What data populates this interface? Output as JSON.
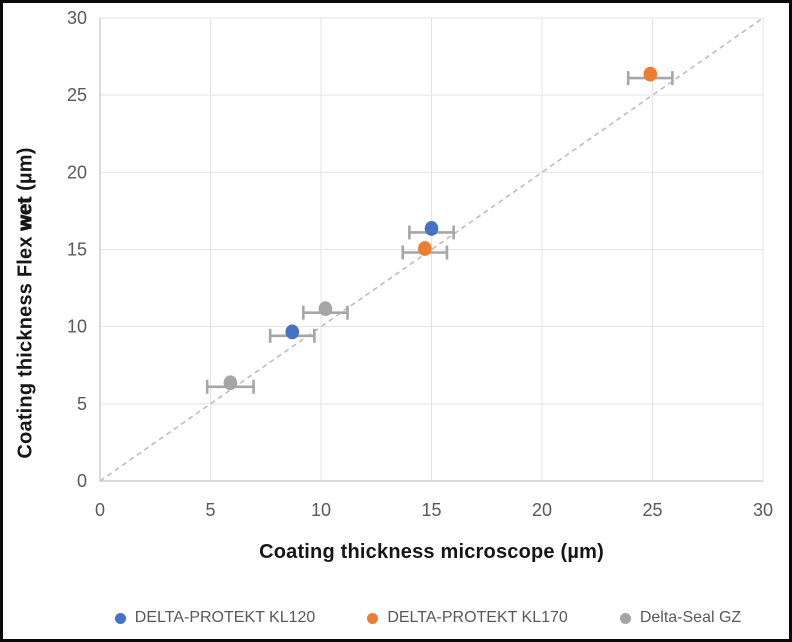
{
  "chart_data": {
    "type": "scatter",
    "title": "",
    "xlabel": "Coating thickness microscope (µm)",
    "ylabel": "Coating thickness Flex wet (µm)",
    "ylabel_parts": {
      "prefix": "Coating thickness Flex ",
      "bold_word": "wet",
      "suffix": " (µm)"
    },
    "xlim": [
      0,
      30
    ],
    "ylim": [
      0,
      30
    ],
    "xticks": [
      0,
      5,
      10,
      15,
      20,
      25,
      30
    ],
    "yticks": [
      0,
      5,
      10,
      15,
      20,
      25,
      30
    ],
    "grid": true,
    "grid_color": "#e3e3e3",
    "axis_color": "#cfcfcf",
    "errorbar_color": "#a6a6a6",
    "identity_line": {
      "from": [
        0,
        0
      ],
      "to": [
        30,
        30
      ],
      "style": "dashed",
      "color": "#bdbdbd"
    },
    "legend_position": "bottom",
    "series": [
      {
        "name": "DELTA-PROTEKT KL120",
        "color": "#4472c4",
        "points": [
          {
            "x": 8.7,
            "y": 9.6,
            "xerr": 1.0
          },
          {
            "x": 15.0,
            "y": 16.3,
            "xerr": 1.0
          }
        ]
      },
      {
        "name": "DELTA-PROTEKT KL170",
        "color": "#ed7d31",
        "points": [
          {
            "x": 14.7,
            "y": 15.0,
            "xerr": 1.0
          },
          {
            "x": 24.9,
            "y": 26.3,
            "xerr": 1.0
          }
        ]
      },
      {
        "name": "Delta-Seal GZ",
        "color": "#a5a5a5",
        "points": [
          {
            "x": 5.9,
            "y": 6.3,
            "xerr": 1.05
          },
          {
            "x": 10.2,
            "y": 11.1,
            "xerr": 1.0
          }
        ]
      }
    ]
  }
}
